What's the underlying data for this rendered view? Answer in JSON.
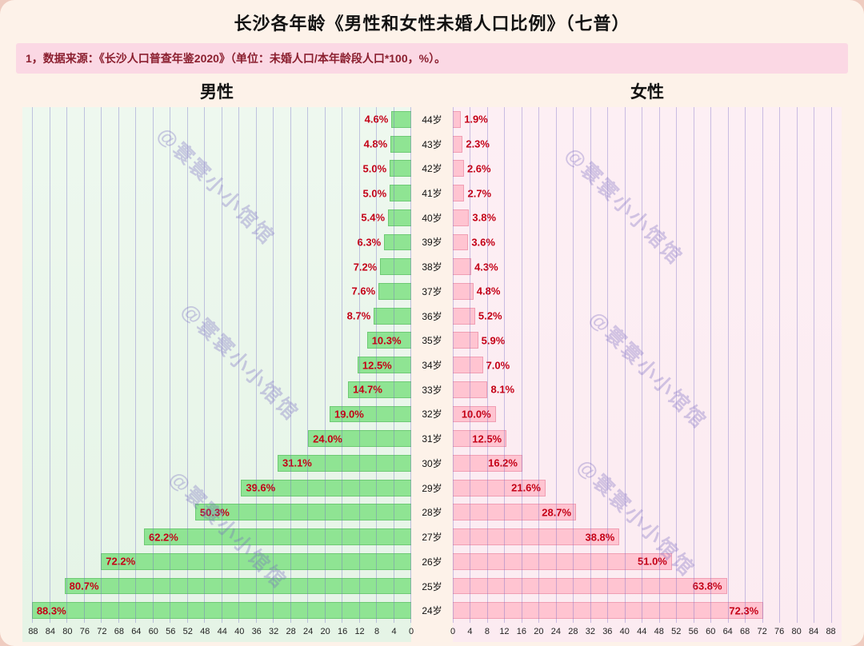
{
  "title": "长沙各年龄《男性和女性未婚人口比例》（七普）",
  "note": "1，数据来源：《长沙人口普查年鉴2020》（单位：未婚人口/本年龄段人口*100，%）。",
  "male_header": "男性",
  "female_header": "女性",
  "watermark": "@寰寰小小馆馆",
  "colors": {
    "male_bar": "#8fe493",
    "female_bar": "#ffc4d1",
    "label_red": "#c40016",
    "gridline": "#746ac6",
    "note_bg": "#fbd8e4",
    "male_panel_bg": "#e9f6ea",
    "female_panel_bg": "#fdeef3"
  },
  "chart_data": {
    "type": "bar",
    "subtype": "population-pyramid",
    "title": "长沙各年龄《男性和女性未婚人口比例》（七普）",
    "unit": "%",
    "categories": [
      "44岁",
      "43岁",
      "42岁",
      "41岁",
      "40岁",
      "39岁",
      "38岁",
      "37岁",
      "36岁",
      "35岁",
      "34岁",
      "33岁",
      "32岁",
      "31岁",
      "30岁",
      "29岁",
      "28岁",
      "27岁",
      "26岁",
      "25岁",
      "24岁"
    ],
    "series": [
      {
        "name": "男性",
        "side": "left",
        "values": [
          4.6,
          4.8,
          5.0,
          5.0,
          5.4,
          6.3,
          7.2,
          7.6,
          8.7,
          10.3,
          12.5,
          14.7,
          19.0,
          24.0,
          31.1,
          39.6,
          50.3,
          62.2,
          72.2,
          80.7,
          88.3
        ]
      },
      {
        "name": "女性",
        "side": "right",
        "values": [
          1.9,
          2.3,
          2.6,
          2.7,
          3.8,
          3.6,
          4.3,
          4.8,
          5.2,
          5.9,
          7.0,
          8.1,
          10.0,
          12.5,
          16.2,
          21.6,
          28.7,
          38.8,
          51.0,
          63.8,
          72.3
        ]
      }
    ],
    "axis_ticks": [
      0,
      4,
      8,
      12,
      16,
      20,
      24,
      28,
      32,
      36,
      40,
      44,
      48,
      52,
      56,
      60,
      64,
      68,
      72,
      76,
      80,
      84,
      88
    ],
    "axis_max": 90.5,
    "grid": true,
    "legend_position": "panel-headers"
  }
}
